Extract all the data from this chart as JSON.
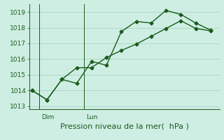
{
  "line1_x": [
    0,
    1,
    2,
    3,
    4,
    5,
    6,
    7,
    8,
    9,
    10,
    11,
    12
  ],
  "line1_y": [
    1014.0,
    1013.4,
    1014.7,
    1014.45,
    1015.85,
    1015.6,
    1017.75,
    1018.4,
    1018.3,
    1019.1,
    1018.85,
    1018.3,
    1017.85
  ],
  "line2_x": [
    0,
    1,
    2,
    3,
    4,
    5,
    6,
    7,
    8,
    9,
    10,
    11,
    12
  ],
  "line2_y": [
    1014.0,
    1013.4,
    1014.7,
    1015.45,
    1015.45,
    1016.1,
    1016.55,
    1016.95,
    1017.45,
    1017.95,
    1018.45,
    1017.95,
    1017.8
  ],
  "line_color": "#1a5c1a",
  "bg_color": "#ceeee4",
  "grid_color": "#aad4c0",
  "axis_color": "#1a5c1a",
  "ylim": [
    1012.8,
    1019.5
  ],
  "yticks": [
    1013,
    1014,
    1015,
    1016,
    1017,
    1018,
    1019
  ],
  "xlim": [
    -0.2,
    12.6
  ],
  "dim_x": 0.5,
  "lun_x": 3.5,
  "xlabel": "Pression niveau de la mer(  hPa )",
  "xlabel_fontsize": 8,
  "tick_fontsize": 6.5,
  "marker": "D",
  "markersize": 2.5,
  "linewidth": 1.0
}
